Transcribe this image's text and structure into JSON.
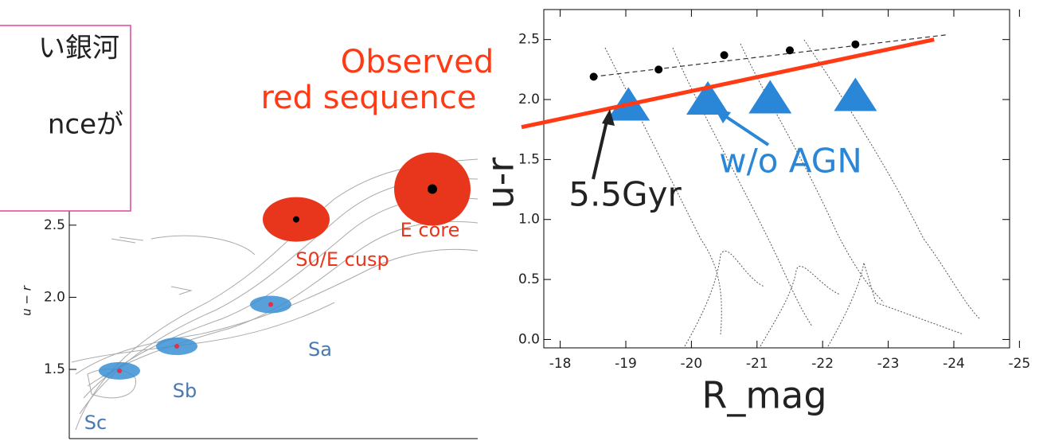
{
  "text_box": {
    "lines": [
      "い銀河",
      "nceが"
    ]
  },
  "chart_data": [
    {
      "type": "scatter",
      "ylabel": "u − r",
      "categories": [
        "Sc",
        "Sb",
        "Sa",
        "S0/E cusp",
        "E core"
      ],
      "values": [
        1.49,
        1.66,
        1.95,
        2.54,
        2.75
      ],
      "colors": [
        "#3b8fd4",
        "#3b8fd4",
        "#3b8fd4",
        "#e8361c",
        "#e8361c"
      ],
      "label_colors": [
        "#4a78b0",
        "#4a78b0",
        "#4a78b0",
        "#e8361c",
        "#e8361c"
      ],
      "ylim": [
        1.02,
        3.04
      ],
      "yticks": [
        1.5,
        {
          "value": 2,
          "label": "2.0"
        },
        2.5
      ]
    },
    {
      "type": "scatter",
      "xlabel": "R_mag",
      "ylabel": "u-r",
      "xlim": [
        -17.75,
        -24.85
      ],
      "ylim": [
        -0.07,
        2.75
      ],
      "xticks": [
        -18,
        -19,
        -20,
        -21,
        -22,
        -23,
        -24,
        -25
      ],
      "yticks": [
        {
          "value": 0,
          "label": "0.0"
        },
        0.5,
        {
          "value": 1,
          "label": "1.0"
        },
        1.5,
        {
          "value": 2,
          "label": "2.0"
        },
        2.5
      ],
      "series": [
        {
          "marker": "dashed",
          "color": "#333333",
          "x": [
            -18.5,
            -23.9
          ],
          "values": [
            2.19,
            2.54
          ]
        },
        {
          "marker": "circle",
          "color": "#000000",
          "x": [
            -18.51,
            -19.5,
            -20.5,
            -21.5,
            -22.5
          ],
          "values": [
            2.19,
            2.25,
            2.37,
            2.41,
            2.46
          ]
        },
        {
          "marker": "triangle",
          "color": "#2a86d6",
          "x": [
            -19.04,
            -20.25,
            -21.2,
            -22.5
          ],
          "values": [
            1.97,
            2.02,
            2.03,
            2.05
          ]
        },
        {
          "marker": "line",
          "color": "#ff3a14",
          "x": [
            -17.41,
            -23.7
          ],
          "values": [
            1.77,
            2.5
          ]
        }
      ],
      "annotations": [
        {
          "text": "Observed",
          "color": "#ff3a14"
        },
        {
          "text": "red sequence",
          "color": "#ff3a14"
        },
        {
          "text": "w/o AGN",
          "color": "#2a86d6"
        },
        {
          "text": "5.5Gyr",
          "color": "#222222"
        }
      ]
    }
  ]
}
